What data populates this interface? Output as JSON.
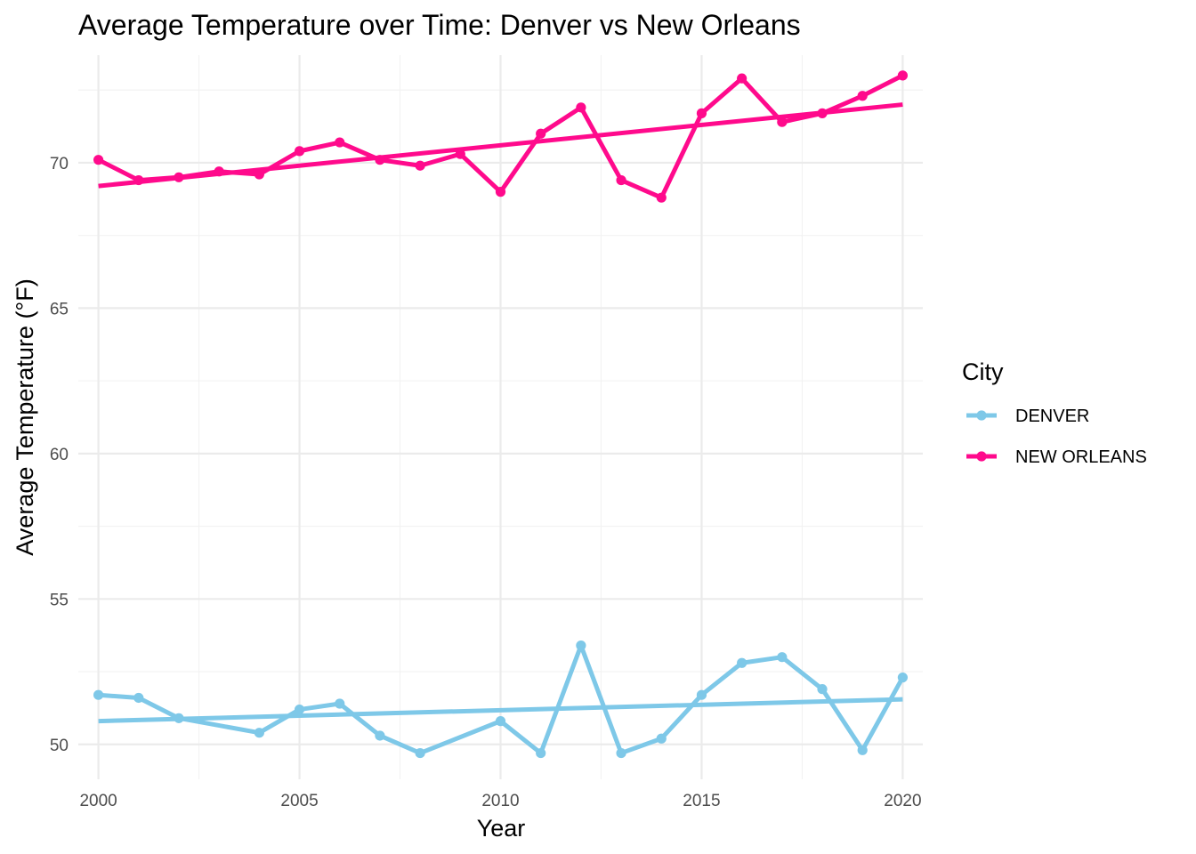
{
  "chart_data": {
    "type": "line",
    "title": "Average Temperature over Time: Denver vs New Orleans",
    "xlabel": "Year",
    "ylabel": "Average Temperature (°F)",
    "xlim": [
      1999.5,
      2020.5
    ],
    "ylim": [
      48.8,
      73.7
    ],
    "x_ticks": [
      2000,
      2005,
      2010,
      2015,
      2020
    ],
    "y_ticks": [
      50,
      55,
      60,
      65,
      70
    ],
    "x_tick_labels": [
      "2000",
      "2005",
      "2010",
      "2015",
      "2020"
    ],
    "y_tick_labels": [
      "50",
      "55",
      "60",
      "65",
      "70"
    ],
    "grid": true,
    "legend": {
      "title": "City",
      "position": "right"
    },
    "series": [
      {
        "name": "DENVER",
        "color": "#7EC8E8",
        "points": [
          {
            "x": 2000,
            "y": 51.7
          },
          {
            "x": 2001,
            "y": 51.6
          },
          {
            "x": 2002,
            "y": 50.9
          },
          {
            "x": 2004,
            "y": 50.4
          },
          {
            "x": 2005,
            "y": 51.2
          },
          {
            "x": 2006,
            "y": 51.4
          },
          {
            "x": 2007,
            "y": 50.3
          },
          {
            "x": 2008,
            "y": 49.7
          },
          {
            "x": 2010,
            "y": 50.8
          },
          {
            "x": 2011,
            "y": 49.7
          },
          {
            "x": 2012,
            "y": 53.4
          },
          {
            "x": 2013,
            "y": 49.7
          },
          {
            "x": 2014,
            "y": 50.2
          },
          {
            "x": 2015,
            "y": 51.7
          },
          {
            "x": 2016,
            "y": 52.8
          },
          {
            "x": 2017,
            "y": 53.0
          },
          {
            "x": 2018,
            "y": 51.9
          },
          {
            "x": 2019,
            "y": 49.8
          },
          {
            "x": 2020,
            "y": 52.3
          }
        ],
        "trend": {
          "x": [
            2000,
            2020
          ],
          "y": [
            50.8,
            51.55
          ]
        }
      },
      {
        "name": "NEW ORLEANS",
        "color": "#FF0A8C",
        "points": [
          {
            "x": 2000,
            "y": 70.1
          },
          {
            "x": 2001,
            "y": 69.4
          },
          {
            "x": 2002,
            "y": 69.5
          },
          {
            "x": 2003,
            "y": 69.7
          },
          {
            "x": 2004,
            "y": 69.6
          },
          {
            "x": 2005,
            "y": 70.4
          },
          {
            "x": 2006,
            "y": 70.7
          },
          {
            "x": 2007,
            "y": 70.1
          },
          {
            "x": 2008,
            "y": 69.9
          },
          {
            "x": 2009,
            "y": 70.3
          },
          {
            "x": 2010,
            "y": 69.0
          },
          {
            "x": 2011,
            "y": 71.0
          },
          {
            "x": 2012,
            "y": 71.9
          },
          {
            "x": 2013,
            "y": 69.4
          },
          {
            "x": 2014,
            "y": 68.8
          },
          {
            "x": 2015,
            "y": 71.7
          },
          {
            "x": 2016,
            "y": 72.9
          },
          {
            "x": 2017,
            "y": 71.4
          },
          {
            "x": 2018,
            "y": 71.7
          },
          {
            "x": 2019,
            "y": 72.3
          },
          {
            "x": 2020,
            "y": 73.0
          }
        ],
        "trend": {
          "x": [
            2000,
            2020
          ],
          "y": [
            69.2,
            72.0
          ]
        }
      }
    ]
  }
}
